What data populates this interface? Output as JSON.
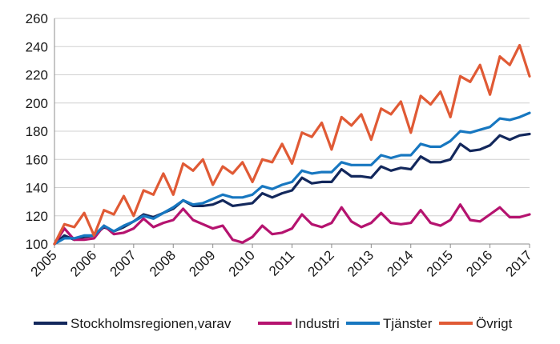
{
  "chart_data": {
    "type": "line",
    "title": "",
    "xlabel": "",
    "ylabel": "",
    "ylim": [
      100,
      260
    ],
    "yticks": [
      100,
      120,
      140,
      160,
      180,
      200,
      220,
      240,
      260
    ],
    "xlim": [
      2005,
      2017
    ],
    "xticks": [
      "2005",
      "2006",
      "2007",
      "2008",
      "2009",
      "2010",
      "2011",
      "2012",
      "2013",
      "2014",
      "2015",
      "2016",
      "2017"
    ],
    "grid": "horizontal",
    "legend_position": "bottom",
    "x": [
      2005.0,
      2005.25,
      2005.5,
      2005.75,
      2006.0,
      2006.25,
      2006.5,
      2006.75,
      2007.0,
      2007.25,
      2007.5,
      2007.75,
      2008.0,
      2008.25,
      2008.5,
      2008.75,
      2009.0,
      2009.25,
      2009.5,
      2009.75,
      2010.0,
      2010.25,
      2010.5,
      2010.75,
      2011.0,
      2011.25,
      2011.5,
      2011.75,
      2012.0,
      2012.25,
      2012.5,
      2012.75,
      2013.0,
      2013.25,
      2013.5,
      2013.75,
      2014.0,
      2014.25,
      2014.5,
      2014.75,
      2015.0,
      2015.25,
      2015.5,
      2015.75,
      2016.0,
      2016.25,
      2016.5,
      2016.75,
      2017.0
    ],
    "series": [
      {
        "name": "Stockholmsregionen,varav",
        "color": "#13285c",
        "values": [
          100,
          106,
          103,
          105,
          106,
          112,
          109,
          112,
          116,
          121,
          119,
          122,
          125,
          131,
          127,
          127,
          128,
          131,
          127,
          128,
          129,
          136,
          133,
          136,
          138,
          147,
          143,
          144,
          144,
          153,
          148,
          148,
          147,
          155,
          152,
          154,
          153,
          162,
          158,
          158,
          160,
          171,
          166,
          167,
          170,
          177,
          174,
          177,
          178
        ]
      },
      {
        "name": "Industri",
        "color": "#b5136f",
        "values": [
          100,
          111,
          103,
          103,
          104,
          113,
          107,
          108,
          111,
          118,
          112,
          115,
          117,
          125,
          117,
          114,
          111,
          113,
          103,
          101,
          105,
          113,
          107,
          108,
          111,
          121,
          114,
          112,
          115,
          126,
          116,
          112,
          115,
          122,
          115,
          114,
          115,
          124,
          115,
          113,
          117,
          128,
          117,
          116,
          121,
          126,
          119,
          119,
          121
        ]
      },
      {
        "name": "Tjänster",
        "color": "#1777c0",
        "values": [
          100,
          104,
          104,
          106,
          106,
          113,
          109,
          113,
          116,
          120,
          118,
          122,
          126,
          131,
          128,
          129,
          132,
          135,
          133,
          133,
          135,
          141,
          139,
          142,
          144,
          152,
          150,
          151,
          151,
          158,
          156,
          156,
          156,
          163,
          161,
          163,
          163,
          171,
          169,
          169,
          173,
          180,
          179,
          181,
          183,
          189,
          188,
          190,
          193
        ]
      },
      {
        "name": "Övrigt",
        "color": "#e05a35",
        "values": [
          100,
          114,
          112,
          122,
          106,
          124,
          121,
          134,
          120,
          138,
          135,
          150,
          135,
          157,
          152,
          160,
          142,
          155,
          150,
          158,
          144,
          160,
          158,
          171,
          157,
          179,
          176,
          186,
          167,
          190,
          184,
          192,
          174,
          196,
          192,
          201,
          179,
          205,
          199,
          208,
          190,
          219,
          215,
          227,
          206,
          233,
          227,
          241,
          219
        ]
      }
    ]
  }
}
